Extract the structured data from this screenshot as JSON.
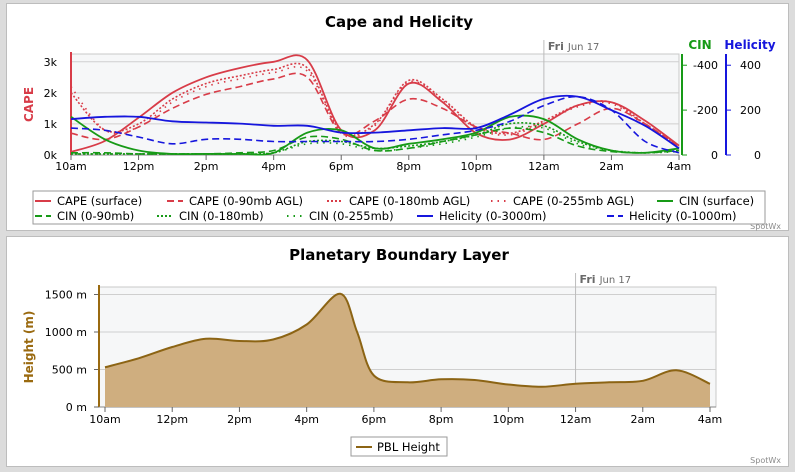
{
  "colors": {
    "cape": "#d83c48",
    "cin": "#179a17",
    "helicity": "#1616dd",
    "pbl_line": "#8c6414",
    "pbl_fill": "#cfae7f",
    "ylabel_pbl": "#9a6a10"
  },
  "credit": "SpotWx",
  "chart_data": [
    {
      "type": "line",
      "title": "Cape and Helicity",
      "day_marker": {
        "day": "Fri",
        "date": "Jun 17",
        "hour": 24
      },
      "x_hours": [
        10,
        11,
        12,
        13,
        14,
        15,
        16,
        17,
        18,
        19,
        20,
        21,
        22,
        23,
        24,
        25,
        26,
        27,
        28
      ],
      "xtick_hours": [
        10,
        12,
        14,
        16,
        18,
        20,
        22,
        24,
        26,
        28
      ],
      "xtick_labels": [
        "10am",
        "12pm",
        "2pm",
        "4pm",
        "6pm",
        "8pm",
        "10pm",
        "12am",
        "2am",
        "4am"
      ],
      "axes": {
        "cape": {
          "label": "CAPE",
          "range": [
            0,
            3250
          ],
          "ticks": [
            0,
            1000,
            2000,
            3000
          ],
          "tick_labels": [
            "0k",
            "1k",
            "2k",
            "3k"
          ]
        },
        "cin": {
          "label": "CIN",
          "range": [
            0,
            -450
          ],
          "ticks": [
            0,
            -200,
            -400
          ],
          "tick_labels": [
            "0",
            "-200",
            "-400"
          ]
        },
        "helicity": {
          "label": "Helicity",
          "range": [
            0,
            450
          ],
          "ticks": [
            0,
            200,
            400
          ],
          "tick_labels": [
            "0",
            "200",
            "400"
          ]
        }
      },
      "series": [
        {
          "name": "CAPE (surface)",
          "axis": "cape",
          "dash": "solid",
          "values": [
            100,
            450,
            1200,
            2000,
            2500,
            2800,
            3000,
            3050,
            800,
            800,
            2300,
            1700,
            700,
            500,
            1000,
            1600,
            1700,
            1100,
            300
          ]
        },
        {
          "name": "CAPE (0-90mb AGL)",
          "axis": "cape",
          "dash": "dashed",
          "values": [
            700,
            500,
            900,
            1500,
            1950,
            2200,
            2450,
            2500,
            700,
            1100,
            1800,
            1500,
            900,
            700,
            500,
            1000,
            1500,
            1000,
            250
          ]
        },
        {
          "name": "CAPE (0-180mb AGL)",
          "axis": "cape",
          "dash": "dotted",
          "values": [
            2000,
            800,
            1000,
            1800,
            2300,
            2550,
            2750,
            2800,
            750,
            1000,
            2400,
            1800,
            900,
            700,
            1100,
            1600,
            1700,
            1000,
            300
          ]
        },
        {
          "name": "CAPE (0-255mb AGL)",
          "axis": "cape",
          "dash": "dotdash",
          "values": [
            2200,
            800,
            900,
            1700,
            2200,
            2450,
            2650,
            2700,
            700,
            950,
            2350,
            1750,
            850,
            650,
            1050,
            1550,
            1650,
            950,
            250
          ]
        },
        {
          "name": "CIN (surface)",
          "axis": "cin",
          "dash": "solid",
          "values": [
            -170,
            -70,
            -20,
            -5,
            -5,
            -5,
            -10,
            -100,
            -110,
            -30,
            -50,
            -70,
            -100,
            -170,
            -160,
            -70,
            -20,
            -10,
            -30
          ]
        },
        {
          "name": "CIN (0-90mb)",
          "axis": "cin",
          "dash": "dashed",
          "values": [
            -10,
            -10,
            -5,
            -5,
            -5,
            -10,
            -20,
            -80,
            -70,
            -20,
            -30,
            -60,
            -90,
            -120,
            -100,
            -40,
            -15,
            -10,
            -20
          ]
        },
        {
          "name": "CIN (0-180mb)",
          "axis": "cin",
          "dash": "dotted",
          "values": [
            -5,
            -5,
            -5,
            -5,
            -5,
            -5,
            -10,
            -60,
            -60,
            -30,
            -40,
            -60,
            -90,
            -140,
            -130,
            -60,
            -20,
            -10,
            -20
          ]
        },
        {
          "name": "CIN (0-255mb)",
          "axis": "cin",
          "dash": "dotdash",
          "values": [
            -5,
            -5,
            -5,
            -5,
            -5,
            -5,
            -10,
            -50,
            -50,
            -20,
            -30,
            -50,
            -80,
            -120,
            -120,
            -50,
            -20,
            -10,
            -15
          ]
        },
        {
          "name": "Helicity (0-3000m)",
          "axis": "helicity",
          "dash": "solid",
          "values": [
            160,
            170,
            170,
            150,
            145,
            140,
            130,
            130,
            100,
            100,
            110,
            120,
            120,
            180,
            250,
            260,
            200,
            130,
            30
          ]
        },
        {
          "name": "Helicity (0-1000m)",
          "axis": "helicity",
          "dash": "dashed",
          "values": [
            120,
            110,
            80,
            50,
            70,
            70,
            60,
            60,
            60,
            60,
            70,
            90,
            110,
            150,
            220,
            260,
            200,
            60,
            10
          ]
        }
      ]
    },
    {
      "type": "area",
      "title": "Planetary Boundary Layer",
      "ylabel": "Height (m)",
      "day_marker": {
        "day": "Fri",
        "date": "Jun 17",
        "hour": 24
      },
      "x_hours": [
        10,
        11,
        12,
        13,
        14,
        15,
        16,
        17,
        17.5,
        18,
        19,
        20,
        21,
        22,
        23,
        24,
        25,
        26,
        27,
        28
      ],
      "xtick_hours": [
        10,
        12,
        14,
        16,
        18,
        20,
        22,
        24,
        26,
        28
      ],
      "xtick_labels": [
        "10am",
        "12pm",
        "2pm",
        "4pm",
        "6pm",
        "8pm",
        "10pm",
        "12am",
        "2am",
        "4am"
      ],
      "ylim": [
        0,
        1600
      ],
      "yticks": [
        0,
        500,
        1000,
        1500
      ],
      "ytick_labels": [
        "0 m",
        "500 m",
        "1000 m",
        "1500 m"
      ],
      "series": [
        {
          "name": "PBL Height",
          "values": [
            530,
            650,
            800,
            910,
            880,
            900,
            1100,
            1510,
            1000,
            420,
            330,
            370,
            360,
            300,
            270,
            310,
            330,
            350,
            490,
            310
          ]
        }
      ]
    }
  ]
}
